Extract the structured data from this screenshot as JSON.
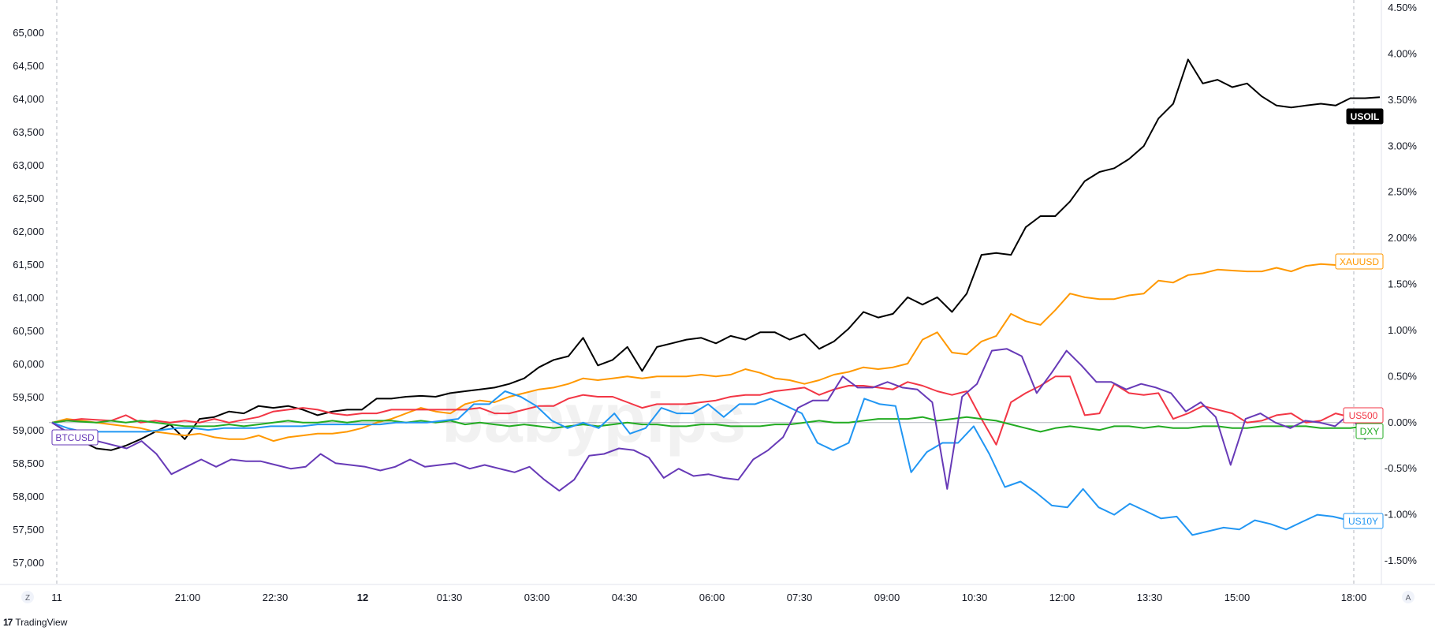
{
  "chart_data": {
    "type": "line",
    "x_ticks": [
      "11",
      "21:00",
      "22:30",
      "12",
      "01:30",
      "03:00",
      "04:30",
      "06:00",
      "07:30",
      "09:00",
      "10:30",
      "12:00",
      "13:30",
      "15:00",
      "18:00"
    ],
    "left_axis": {
      "ticks": [
        "65,000",
        "64,500",
        "64,000",
        "63,500",
        "63,000",
        "62,500",
        "62,000",
        "61,500",
        "61,000",
        "60,500",
        "60,000",
        "59,500",
        "59,000",
        "58,500",
        "58,000",
        "57,500",
        "57,000"
      ],
      "range": [
        56800,
        65400
      ]
    },
    "right_axis": {
      "ticks": [
        "4.50%",
        "4.00%",
        "3.50%",
        "3.00%",
        "2.50%",
        "2.00%",
        "1.50%",
        "1.00%",
        "0.50%",
        "0.00%",
        "-0.50%",
        "-1.00%",
        "-1.50%"
      ],
      "range": [
        -1.75,
        4.5
      ],
      "unit": "%"
    },
    "grid": false,
    "series": [
      {
        "name": "USOIL",
        "color": "#000000",
        "label_style": "filled",
        "values": [
          0.0,
          -0.1,
          -0.2,
          -0.28,
          -0.3,
          -0.25,
          -0.18,
          -0.1,
          -0.02,
          -0.18,
          0.04,
          0.06,
          0.12,
          0.1,
          0.18,
          0.16,
          0.18,
          0.14,
          0.08,
          0.12,
          0.14,
          0.14,
          0.26,
          0.26,
          0.28,
          0.29,
          0.28,
          0.32,
          0.34,
          0.36,
          0.38,
          0.42,
          0.48,
          0.6,
          0.68,
          0.72,
          0.92,
          0.62,
          0.68,
          0.82,
          0.56,
          0.82,
          0.86,
          0.9,
          0.92,
          0.86,
          0.94,
          0.9,
          0.98,
          0.98,
          0.9,
          0.96,
          0.8,
          0.88,
          1.02,
          1.2,
          1.14,
          1.18,
          1.36,
          1.28,
          1.36,
          1.2,
          1.4,
          1.82,
          1.84,
          1.82,
          2.12,
          2.24,
          2.24,
          2.4,
          2.62,
          2.72,
          2.76,
          2.86,
          3.0,
          3.3,
          3.46,
          3.94,
          3.68,
          3.72,
          3.64,
          3.68,
          3.54,
          3.44,
          3.42,
          3.44,
          3.46,
          3.44,
          3.52,
          3.52,
          3.53
        ]
      },
      {
        "name": "XAUUSD",
        "color": "#ff9800",
        "label_style": "outline",
        "values": [
          0.0,
          0.04,
          0.02,
          0.0,
          -0.02,
          -0.04,
          -0.06,
          -0.1,
          -0.12,
          -0.14,
          -0.12,
          -0.16,
          -0.18,
          -0.18,
          -0.14,
          -0.2,
          -0.16,
          -0.14,
          -0.12,
          -0.12,
          -0.1,
          -0.06,
          0.0,
          0.04,
          0.1,
          0.16,
          0.12,
          0.1,
          0.2,
          0.24,
          0.22,
          0.28,
          0.32,
          0.36,
          0.38,
          0.42,
          0.48,
          0.46,
          0.48,
          0.5,
          0.48,
          0.5,
          0.5,
          0.5,
          0.52,
          0.5,
          0.52,
          0.58,
          0.54,
          0.48,
          0.46,
          0.42,
          0.46,
          0.52,
          0.55,
          0.6,
          0.58,
          0.6,
          0.64,
          0.9,
          0.98,
          0.76,
          0.74,
          0.88,
          0.94,
          1.18,
          1.1,
          1.06,
          1.22,
          1.4,
          1.36,
          1.34,
          1.34,
          1.38,
          1.4,
          1.54,
          1.52,
          1.6,
          1.62,
          1.66,
          1.65,
          1.64,
          1.64,
          1.68,
          1.64,
          1.7,
          1.72,
          1.71,
          1.72,
          1.74,
          1.75
        ]
      },
      {
        "name": "US500",
        "color": "#f23645",
        "label_style": "outline",
        "values": [
          0.0,
          0.02,
          0.04,
          0.03,
          0.02,
          0.08,
          0.0,
          0.02,
          0.0,
          0.02,
          0.0,
          0.04,
          0.0,
          0.03,
          0.06,
          0.12,
          0.14,
          0.16,
          0.14,
          0.1,
          0.08,
          0.1,
          0.1,
          0.14,
          0.14,
          0.14,
          0.14,
          0.14,
          0.14,
          0.16,
          0.1,
          0.1,
          0.14,
          0.18,
          0.18,
          0.26,
          0.3,
          0.28,
          0.28,
          0.22,
          0.16,
          0.2,
          0.2,
          0.2,
          0.22,
          0.24,
          0.28,
          0.3,
          0.3,
          0.34,
          0.36,
          0.38,
          0.3,
          0.36,
          0.4,
          0.4,
          0.38,
          0.36,
          0.44,
          0.4,
          0.34,
          0.3,
          0.34,
          0.04,
          -0.24,
          0.22,
          0.32,
          0.4,
          0.5,
          0.5,
          0.08,
          0.1,
          0.42,
          0.32,
          0.3,
          0.32,
          0.04,
          0.1,
          0.18,
          0.14,
          0.1,
          0.0,
          0.02,
          0.08,
          0.1,
          0.0,
          0.02,
          0.1,
          0.06,
          0.06,
          0.08
        ]
      },
      {
        "name": "DXY",
        "color": "#22ab22",
        "label_style": "outline",
        "values": [
          0.0,
          0.02,
          0.01,
          0.0,
          0.02,
          0.0,
          0.02,
          0.0,
          -0.02,
          -0.04,
          -0.04,
          -0.04,
          -0.02,
          -0.04,
          -0.02,
          0.0,
          0.02,
          0.0,
          0.0,
          0.02,
          0.0,
          0.02,
          0.02,
          0.02,
          0.0,
          0.02,
          0.0,
          0.02,
          -0.02,
          0.0,
          -0.02,
          -0.04,
          -0.02,
          -0.04,
          -0.06,
          -0.04,
          -0.02,
          -0.04,
          -0.02,
          0.0,
          -0.02,
          -0.02,
          -0.04,
          -0.04,
          -0.02,
          -0.02,
          -0.04,
          -0.04,
          -0.04,
          -0.02,
          -0.02,
          0.0,
          0.02,
          0.0,
          0.0,
          0.02,
          0.04,
          0.04,
          0.04,
          0.06,
          0.02,
          0.04,
          0.06,
          0.04,
          0.02,
          -0.02,
          -0.06,
          -0.1,
          -0.06,
          -0.04,
          -0.06,
          -0.08,
          -0.04,
          -0.04,
          -0.06,
          -0.04,
          -0.06,
          -0.06,
          -0.04,
          -0.04,
          -0.06,
          -0.06,
          -0.04,
          -0.04,
          -0.04,
          -0.04,
          -0.06,
          -0.06,
          -0.06,
          -0.04,
          -0.06
        ]
      },
      {
        "name": "US10Y",
        "color": "#2196f3",
        "label_style": "outline",
        "values": [
          0.0,
          -0.06,
          -0.1,
          -0.1,
          -0.1,
          -0.1,
          -0.1,
          -0.08,
          -0.06,
          -0.06,
          -0.08,
          -0.06,
          -0.06,
          -0.06,
          -0.04,
          -0.04,
          -0.04,
          -0.02,
          -0.02,
          -0.02,
          -0.02,
          -0.02,
          0.0,
          0.0,
          0.0,
          0.02,
          0.04,
          0.2,
          0.2,
          0.34,
          0.28,
          0.18,
          0.02,
          -0.06,
          0.0,
          -0.06,
          0.1,
          -0.12,
          -0.06,
          0.16,
          0.1,
          0.1,
          0.2,
          0.06,
          0.2,
          0.2,
          0.26,
          0.18,
          0.1,
          -0.22,
          -0.3,
          -0.22,
          0.26,
          0.2,
          0.18,
          -0.54,
          -0.32,
          -0.22,
          -0.22,
          -0.04,
          -0.34,
          -0.7,
          -0.64,
          -0.76,
          -0.9,
          -0.92,
          -0.72,
          -0.92,
          -1.0,
          -0.88,
          -0.96,
          -1.04,
          -1.02,
          -1.22,
          -1.18,
          -1.14,
          -1.16,
          -1.06,
          -1.1,
          -1.16,
          -1.08,
          -1.0,
          -1.02,
          -1.06,
          -1.02,
          -1.04
        ]
      },
      {
        "name": "BTCUSD",
        "color": "#673ab7",
        "label_style": "outline",
        "values": [
          0.0,
          -0.1,
          -0.22,
          -0.2,
          -0.24,
          -0.28,
          -0.2,
          -0.34,
          -0.56,
          -0.48,
          -0.4,
          -0.48,
          -0.4,
          -0.42,
          -0.42,
          -0.46,
          -0.5,
          -0.48,
          -0.34,
          -0.44,
          -0.46,
          -0.48,
          -0.52,
          -0.48,
          -0.4,
          -0.48,
          -0.46,
          -0.44,
          -0.5,
          -0.46,
          -0.5,
          -0.54,
          -0.48,
          -0.62,
          -0.74,
          -0.62,
          -0.36,
          -0.34,
          -0.28,
          -0.3,
          -0.38,
          -0.6,
          -0.5,
          -0.58,
          -0.56,
          -0.6,
          -0.62,
          -0.4,
          -0.3,
          -0.16,
          0.16,
          0.24,
          0.24,
          0.5,
          0.38,
          0.38,
          0.44,
          0.38,
          0.36,
          0.22,
          -0.72,
          0.28,
          0.42,
          0.78,
          0.8,
          0.72,
          0.32,
          0.54,
          0.78,
          0.62,
          0.44,
          0.44,
          0.36,
          0.42,
          0.38,
          0.32,
          0.12,
          0.22,
          0.06,
          -0.46,
          0.04,
          0.1,
          0.0,
          -0.06,
          0.02,
          0.0,
          -0.04,
          0.1,
          -0.18,
          0.0
        ]
      }
    ]
  },
  "footer": {
    "brand_mark": "17",
    "brand": "TradingView"
  },
  "corner_buttons": {
    "left": "Z",
    "right": "A"
  },
  "watermark": "babypips"
}
